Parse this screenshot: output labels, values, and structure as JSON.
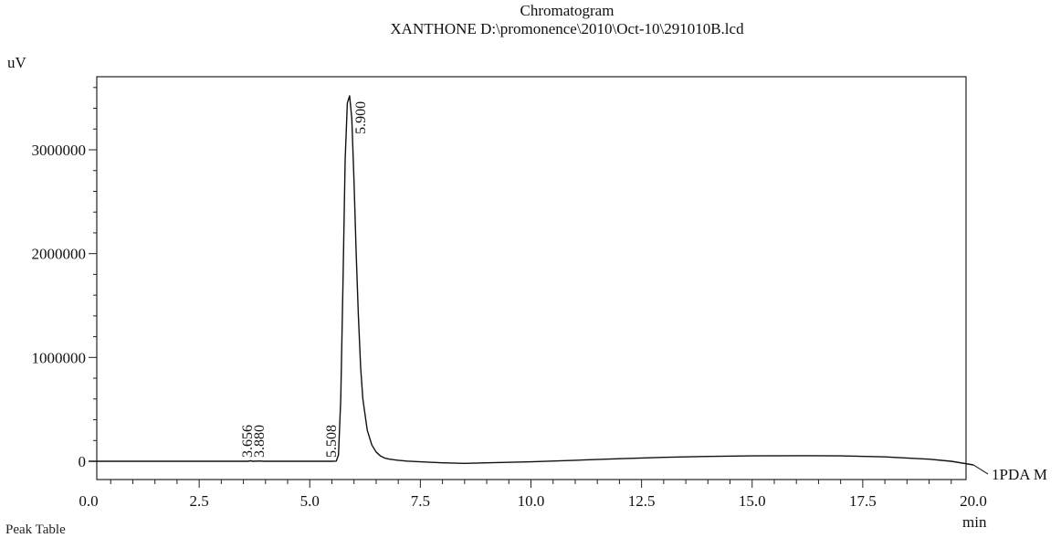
{
  "chart_data": {
    "type": "line",
    "title": "Chromatogram",
    "subtitle": "XANTHONE D:\\promonence\\2010\\Oct-10\\291010B.lcd",
    "ylabel": "uV",
    "xlabel": "min",
    "xlim": [
      0.0,
      20.0
    ],
    "ylim": [
      -200000,
      3700000
    ],
    "x_ticks": [
      "0.0",
      "2.5",
      "5.0",
      "7.5",
      "10.0",
      "12.5",
      "15.0",
      "17.5",
      "20.0"
    ],
    "y_ticks": [
      "0",
      "1000000",
      "2000000",
      "3000000"
    ],
    "grid": false,
    "series": [
      {
        "name": "1PDA M",
        "x": [
          0.0,
          2.0,
          3.6,
          3.66,
          3.72,
          3.88,
          3.95,
          5.0,
          5.5,
          5.6,
          5.65,
          5.7,
          5.75,
          5.8,
          5.85,
          5.9,
          5.95,
          6.0,
          6.05,
          6.1,
          6.15,
          6.2,
          6.3,
          6.4,
          6.5,
          6.6,
          6.7,
          6.8,
          7.0,
          7.2,
          7.5,
          8.0,
          8.5,
          9.0,
          10.0,
          11.0,
          12.0,
          13.0,
          14.0,
          15.0,
          16.0,
          17.0,
          18.0,
          19.0,
          19.5,
          20.0
        ],
        "y": [
          0,
          0,
          0,
          4000,
          0,
          3000,
          0,
          0,
          0,
          2000,
          60000,
          600000,
          1700000,
          2900000,
          3450000,
          3520000,
          3300000,
          2700000,
          2000000,
          1400000,
          900000,
          600000,
          300000,
          160000,
          90000,
          50000,
          30000,
          20000,
          10000,
          2000,
          -5000,
          -15000,
          -20000,
          -15000,
          -5000,
          10000,
          25000,
          38000,
          47000,
          52000,
          54000,
          52000,
          42000,
          20000,
          0,
          -35000
        ]
      }
    ],
    "peak_labels": [
      {
        "label": "3.656",
        "x": 3.656
      },
      {
        "label": "3.880",
        "x": 3.88
      },
      {
        "label": "5.508",
        "x": 5.508
      },
      {
        "label": "5.900",
        "x": 5.9
      }
    ]
  },
  "footer": {
    "text": "Peak Table"
  }
}
